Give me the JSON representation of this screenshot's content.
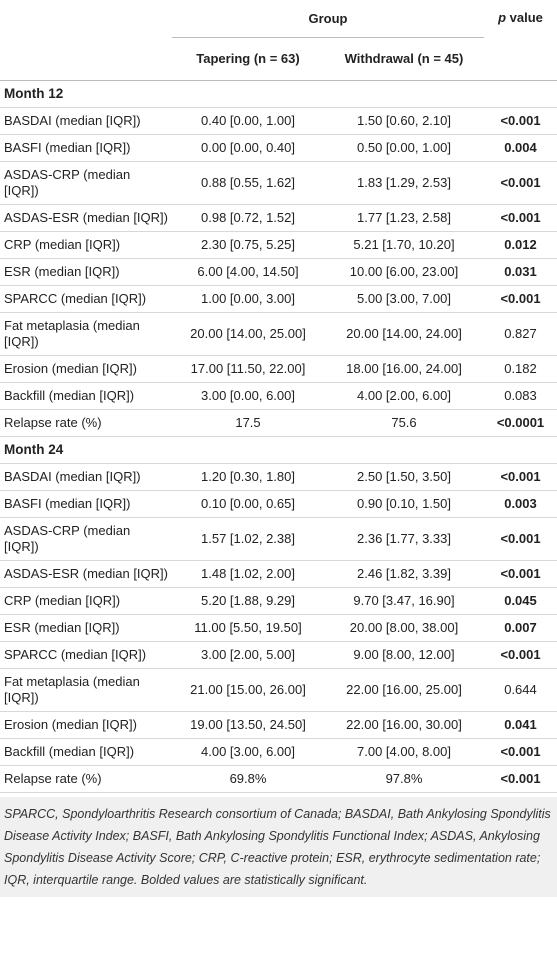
{
  "header": {
    "group": "Group",
    "p_italic": "p",
    "p_rest": "value",
    "tapering": "Tapering (n = 63)",
    "withdrawal": "Withdrawal (n = 45)"
  },
  "sections": [
    {
      "title": "Month 12",
      "rows": [
        {
          "label": "BASDAI (median [IQR])",
          "tapering": "0.40 [0.00, 1.00]",
          "withdrawal": "1.50 [0.60, 2.10]",
          "p": "<0.001",
          "bold": true
        },
        {
          "label": "BASFI (median [IQR])",
          "tapering": "0.00 [0.00, 0.40]",
          "withdrawal": "0.50 [0.00, 1.00]",
          "p": "0.004",
          "bold": true
        },
        {
          "label": "ASDAS-CRP (median [IQR])",
          "tapering": "0.88 [0.55, 1.62]",
          "withdrawal": "1.83 [1.29, 2.53]",
          "p": "<0.001",
          "bold": true
        },
        {
          "label": "ASDAS-ESR (median [IQR])",
          "tapering": "0.98 [0.72, 1.52]",
          "withdrawal": "1.77 [1.23, 2.58]",
          "p": "<0.001",
          "bold": true
        },
        {
          "label": "CRP (median [IQR])",
          "tapering": "2.30 [0.75, 5.25]",
          "withdrawal": "5.21 [1.70, 10.20]",
          "p": "0.012",
          "bold": true
        },
        {
          "label": "ESR (median [IQR])",
          "tapering": "6.00 [4.00, 14.50]",
          "withdrawal": "10.00 [6.00, 23.00]",
          "p": "0.031",
          "bold": true
        },
        {
          "label": "SPARCC (median [IQR])",
          "tapering": "1.00 [0.00, 3.00]",
          "withdrawal": "5.00 [3.00, 7.00]",
          "p": "<0.001",
          "bold": true
        },
        {
          "label": "Fat metaplasia (median [IQR])",
          "tapering": "20.00 [14.00, 25.00]",
          "withdrawal": "20.00 [14.00, 24.00]",
          "p": "0.827",
          "bold": false
        },
        {
          "label": "Erosion (median [IQR])",
          "tapering": "17.00 [11.50, 22.00]",
          "withdrawal": "18.00 [16.00, 24.00]",
          "p": "0.182",
          "bold": false
        },
        {
          "label": "Backfill (median [IQR])",
          "tapering": "3.00 [0.00, 6.00]",
          "withdrawal": "4.00 [2.00, 6.00]",
          "p": "0.083",
          "bold": false
        },
        {
          "label": "Relapse rate (%)",
          "tapering": "17.5",
          "withdrawal": "75.6",
          "p": "<0.0001",
          "bold": true
        }
      ]
    },
    {
      "title": "Month 24",
      "rows": [
        {
          "label": "BASDAI (median [IQR])",
          "tapering": "1.20 [0.30, 1.80]",
          "withdrawal": "2.50 [1.50, 3.50]",
          "p": "<0.001",
          "bold": true
        },
        {
          "label": "BASFI (median [IQR])",
          "tapering": "0.10 [0.00, 0.65]",
          "withdrawal": "0.90 [0.10, 1.50]",
          "p": "0.003",
          "bold": true
        },
        {
          "label": "ASDAS-CRP (median [IQR])",
          "tapering": "1.57 [1.02, 2.38]",
          "withdrawal": "2.36 [1.77, 3.33]",
          "p": "<0.001",
          "bold": true
        },
        {
          "label": "ASDAS-ESR (median [IQR])",
          "tapering": "1.48 [1.02, 2.00]",
          "withdrawal": "2.46 [1.82, 3.39]",
          "p": "<0.001",
          "bold": true
        },
        {
          "label": "CRP (median [IQR])",
          "tapering": "5.20 [1.88, 9.29]",
          "withdrawal": "9.70 [3.47, 16.90]",
          "p": "0.045",
          "bold": true
        },
        {
          "label": "ESR (median [IQR])",
          "tapering": "11.00 [5.50, 19.50]",
          "withdrawal": "20.00 [8.00, 38.00]",
          "p": "0.007",
          "bold": true
        },
        {
          "label": "SPARCC (median [IQR])",
          "tapering": "3.00 [2.00, 5.00]",
          "withdrawal": "9.00 [8.00, 12.00]",
          "p": "<0.001",
          "bold": true
        },
        {
          "label": "Fat metaplasia (median [IQR])",
          "tapering": "21.00 [15.00, 26.00]",
          "withdrawal": "22.00 [16.00, 25.00]",
          "p": "0.644",
          "bold": false
        },
        {
          "label": "Erosion (median [IQR])",
          "tapering": "19.00 [13.50, 24.50]",
          "withdrawal": "22.00 [16.00, 30.00]",
          "p": "0.041",
          "bold": true
        },
        {
          "label": "Backfill (median [IQR])",
          "tapering": "4.00 [3.00, 6.00]",
          "withdrawal": "7.00 [4.00, 8.00]",
          "p": "<0.001",
          "bold": true
        },
        {
          "label": "Relapse rate (%)",
          "tapering": "69.8%",
          "withdrawal": "97.8%",
          "p": "<0.001",
          "bold": true
        }
      ]
    }
  ],
  "footnote": "SPARCC, Spondyloarthritis Research consortium of Canada; BASDAI, Bath Ankylosing Spondylitis Disease Activity Index; BASFI, Bath Ankylosing Spondylitis Functional Index; ASDAS, Ankylosing Spondylitis Disease Activity Score; CRP, C-reactive protein; ESR, erythrocyte sedimentation rate; IQR, interquartile range. Bolded values are statistically significant."
}
